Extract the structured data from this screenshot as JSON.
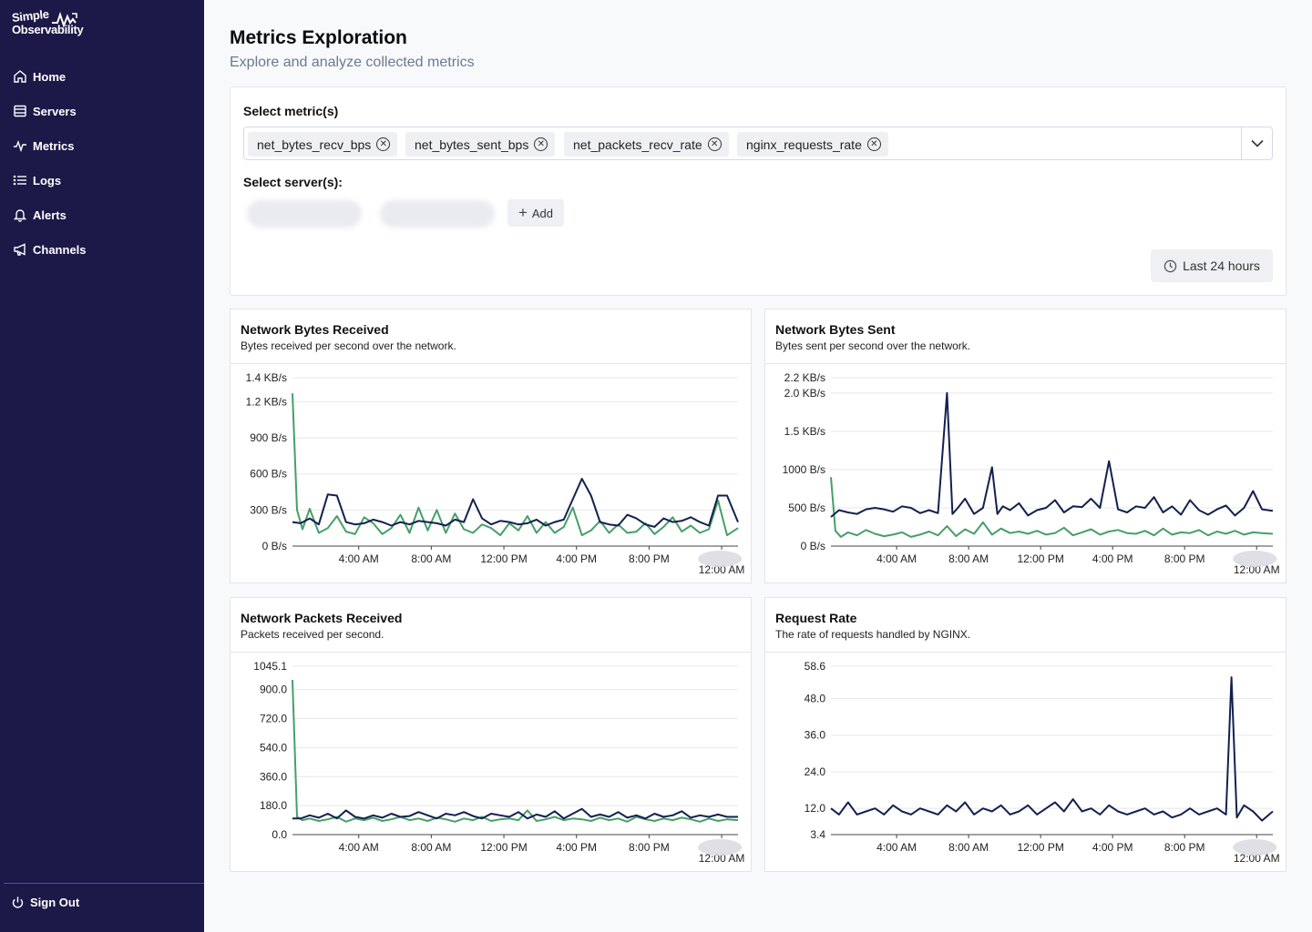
{
  "app": {
    "logo_line1": "Simple",
    "logo_line2": "Observability"
  },
  "sidebar": {
    "items": [
      {
        "label": "Home",
        "icon": "home-icon"
      },
      {
        "label": "Servers",
        "icon": "servers-icon"
      },
      {
        "label": "Metrics",
        "icon": "metrics-icon"
      },
      {
        "label": "Logs",
        "icon": "logs-icon"
      },
      {
        "label": "Alerts",
        "icon": "bell-icon"
      },
      {
        "label": "Channels",
        "icon": "megaphone-icon"
      }
    ],
    "sign_out": "Sign Out"
  },
  "page": {
    "title": "Metrics Exploration",
    "subtitle": "Explore and analyze collected metrics"
  },
  "filters": {
    "metrics_label": "Select metric(s)",
    "metrics": [
      "net_bytes_recv_bps",
      "net_bytes_sent_bps",
      "net_packets_recv_rate",
      "nginx_requests_rate"
    ],
    "servers_label": "Select server(s):",
    "add_label": "Add",
    "time_range": "Last 24 hours"
  },
  "colors": {
    "sidebar_bg": "#1c1848",
    "series_dark": "#14204f",
    "series_green": "#45a066"
  },
  "chart_data": [
    {
      "type": "line",
      "title": "Network Bytes Received",
      "subtitle": "Bytes received per second over the network.",
      "y_tick_labels": [
        "0 B/s",
        "300 B/s",
        "600 B/s",
        "900 B/s",
        "1.2 KB/s",
        "1.4 KB/s"
      ],
      "y_ticks": [
        0,
        300,
        600,
        900,
        1200,
        1400
      ],
      "ylim": [
        0,
        1400
      ],
      "x_labels": [
        "4:00 AM",
        "8:00 AM",
        "12:00 PM",
        "4:00 PM",
        "8:00 PM",
        "12:00 AM"
      ],
      "x_label_hours": [
        4,
        8,
        12,
        16,
        20,
        24
      ],
      "xlim": [
        0.35,
        24.9
      ],
      "series": [
        {
          "name": "server-1",
          "color": "#14204f",
          "x": [
            0.35,
            0.8,
            1.3,
            1.8,
            2.3,
            2.8,
            3.3,
            3.8,
            4.3,
            4.8,
            5.3,
            5.8,
            6.3,
            6.8,
            7.3,
            7.8,
            8.3,
            8.8,
            9.3,
            9.8,
            10.3,
            10.8,
            11.3,
            11.8,
            12.3,
            12.8,
            13.3,
            13.8,
            14.3,
            14.8,
            15.3,
            15.8,
            16.3,
            16.8,
            17.3,
            17.8,
            18.3,
            18.8,
            19.3,
            19.8,
            20.3,
            20.8,
            21.3,
            21.8,
            22.3,
            22.8,
            23.3,
            23.8,
            24.3,
            24.9
          ],
          "values": [
            200,
            190,
            230,
            180,
            430,
            420,
            200,
            180,
            190,
            220,
            200,
            170,
            200,
            180,
            210,
            200,
            190,
            170,
            220,
            200,
            390,
            230,
            180,
            210,
            200,
            180,
            190,
            220,
            170,
            200,
            220,
            390,
            560,
            420,
            200,
            180,
            170,
            260,
            230,
            180,
            160,
            230,
            200,
            210,
            240,
            200,
            170,
            420,
            420,
            200
          ]
        },
        {
          "name": "server-2",
          "color": "#45a066",
          "x": [
            0.35,
            0.6,
            0.9,
            1.3,
            1.8,
            2.3,
            2.8,
            3.3,
            3.8,
            4.3,
            4.8,
            5.3,
            5.8,
            6.3,
            6.8,
            7.3,
            7.8,
            8.3,
            8.8,
            9.3,
            9.8,
            10.3,
            10.8,
            11.3,
            11.8,
            12.3,
            12.8,
            13.3,
            13.8,
            14.3,
            14.8,
            15.3,
            15.8,
            16.3,
            16.8,
            17.3,
            17.8,
            18.3,
            18.8,
            19.3,
            19.8,
            20.3,
            20.8,
            21.3,
            21.8,
            22.3,
            22.8,
            23.3,
            23.8,
            24.3,
            24.9
          ],
          "values": [
            1270,
            300,
            140,
            310,
            110,
            150,
            250,
            120,
            100,
            240,
            190,
            100,
            150,
            260,
            110,
            320,
            130,
            300,
            110,
            270,
            140,
            110,
            180,
            150,
            90,
            190,
            130,
            250,
            110,
            200,
            110,
            160,
            320,
            90,
            130,
            210,
            110,
            180,
            110,
            120,
            190,
            100,
            160,
            240,
            120,
            170,
            110,
            140,
            380,
            90,
            150
          ]
        }
      ]
    },
    {
      "type": "line",
      "title": "Network Bytes Sent",
      "subtitle": "Bytes sent per second over the network.",
      "y_tick_labels": [
        "0 B/s",
        "500 B/s",
        "1000 B/s",
        "1.5 KB/s",
        "2.0 KB/s",
        "2.2 KB/s"
      ],
      "y_ticks": [
        0,
        500,
        1000,
        1500,
        2000,
        2200
      ],
      "ylim": [
        0,
        2200
      ],
      "x_labels": [
        "4:00 AM",
        "8:00 AM",
        "12:00 PM",
        "4:00 PM",
        "8:00 PM",
        "12:00 AM"
      ],
      "x_label_hours": [
        4,
        8,
        12,
        16,
        20,
        24
      ],
      "xlim": [
        0.35,
        24.9
      ],
      "series": [
        {
          "name": "server-1",
          "color": "#14204f",
          "x": [
            0.35,
            0.8,
            1.3,
            1.8,
            2.3,
            2.8,
            3.3,
            3.8,
            4.3,
            4.8,
            5.3,
            5.8,
            6.3,
            6.8,
            7.1,
            7.4,
            7.8,
            8.3,
            8.8,
            9.3,
            9.6,
            9.9,
            10.3,
            10.8,
            11.3,
            11.8,
            12.3,
            12.8,
            13.3,
            13.8,
            14.3,
            14.8,
            15.3,
            15.8,
            16.3,
            16.8,
            17.3,
            17.8,
            18.3,
            18.8,
            19.3,
            19.8,
            20.3,
            20.8,
            21.3,
            21.8,
            22.3,
            22.8,
            23.3,
            23.8,
            24.3,
            24.9
          ],
          "values": [
            380,
            470,
            440,
            420,
            480,
            500,
            480,
            450,
            520,
            500,
            430,
            470,
            430,
            2000,
            420,
            500,
            620,
            420,
            500,
            1030,
            420,
            520,
            470,
            560,
            400,
            470,
            500,
            600,
            440,
            520,
            510,
            620,
            500,
            1110,
            480,
            440,
            520,
            500,
            640,
            440,
            520,
            410,
            600,
            470,
            410,
            480,
            530,
            400,
            500,
            720,
            480,
            460
          ]
        },
        {
          "name": "server-2",
          "color": "#45a066",
          "x": [
            0.35,
            0.6,
            0.9,
            1.3,
            1.8,
            2.3,
            2.8,
            3.3,
            3.8,
            4.3,
            4.8,
            5.3,
            5.8,
            6.3,
            6.8,
            7.3,
            7.8,
            8.3,
            8.8,
            9.3,
            9.8,
            10.3,
            10.8,
            11.3,
            11.8,
            12.3,
            12.8,
            13.3,
            13.8,
            14.3,
            14.8,
            15.3,
            15.8,
            16.3,
            16.8,
            17.3,
            17.8,
            18.3,
            18.8,
            19.3,
            19.8,
            20.3,
            20.8,
            21.3,
            21.8,
            22.3,
            22.8,
            23.3,
            23.8,
            24.3,
            24.9
          ],
          "values": [
            900,
            200,
            120,
            180,
            140,
            210,
            160,
            130,
            150,
            180,
            120,
            150,
            190,
            140,
            260,
            130,
            220,
            160,
            310,
            150,
            230,
            170,
            190,
            160,
            200,
            150,
            170,
            240,
            140,
            180,
            220,
            150,
            190,
            210,
            170,
            160,
            200,
            140,
            230,
            150,
            180,
            170,
            210,
            140,
            190,
            160,
            200,
            150,
            180,
            170,
            160
          ]
        }
      ]
    },
    {
      "type": "line",
      "title": "Network Packets Received",
      "subtitle": "Packets received per second.",
      "y_tick_labels": [
        "0.0",
        "180.0",
        "360.0",
        "540.0",
        "720.0",
        "900.0",
        "1045.1"
      ],
      "y_ticks": [
        0,
        180,
        360,
        540,
        720,
        900,
        1045.1
      ],
      "ylim": [
        0,
        1045.1
      ],
      "x_labels": [
        "4:00 AM",
        "8:00 AM",
        "12:00 PM",
        "4:00 PM",
        "8:00 PM",
        "12:00 AM"
      ],
      "x_label_hours": [
        4,
        8,
        12,
        16,
        20,
        24
      ],
      "xlim": [
        0.35,
        24.9
      ],
      "series": [
        {
          "name": "server-1",
          "color": "#14204f",
          "x": [
            0.35,
            0.8,
            1.3,
            1.8,
            2.3,
            2.8,
            3.3,
            3.8,
            4.3,
            4.8,
            5.3,
            5.8,
            6.3,
            6.8,
            7.3,
            7.8,
            8.3,
            8.8,
            9.3,
            9.8,
            10.3,
            10.8,
            11.3,
            11.8,
            12.3,
            12.8,
            13.3,
            13.8,
            14.3,
            14.8,
            15.3,
            15.8,
            16.3,
            16.8,
            17.3,
            17.8,
            18.3,
            18.8,
            19.3,
            19.8,
            20.3,
            20.8,
            21.3,
            21.8,
            22.3,
            22.8,
            23.3,
            23.8,
            24.3,
            24.9
          ],
          "values": [
            100,
            100,
            120,
            105,
            130,
            100,
            150,
            110,
            100,
            120,
            105,
            130,
            110,
            115,
            140,
            120,
            100,
            130,
            120,
            140,
            115,
            100,
            130,
            120,
            110,
            140,
            100,
            125,
            110,
            145,
            100,
            130,
            160,
            110,
            125,
            110,
            140,
            105,
            120,
            100,
            130,
            110,
            120,
            145,
            105,
            120,
            110,
            125,
            110,
            110
          ]
        },
        {
          "name": "server-2",
          "color": "#45a066",
          "x": [
            0.35,
            0.6,
            0.9,
            1.3,
            1.8,
            2.3,
            2.8,
            3.3,
            3.8,
            4.3,
            4.8,
            5.3,
            5.8,
            6.3,
            6.8,
            7.3,
            7.8,
            8.3,
            8.8,
            9.3,
            9.8,
            10.3,
            10.8,
            11.3,
            11.8,
            12.3,
            12.8,
            13.3,
            13.8,
            14.3,
            14.8,
            15.3,
            15.8,
            16.3,
            16.8,
            17.3,
            17.8,
            18.3,
            18.8,
            19.3,
            19.8,
            20.3,
            20.8,
            21.3,
            21.8,
            22.3,
            22.8,
            23.3,
            23.8,
            24.3,
            24.9
          ],
          "values": [
            960,
            110,
            90,
            100,
            85,
            95,
            110,
            80,
            100,
            90,
            105,
            85,
            95,
            110,
            90,
            100,
            85,
            105,
            95,
            80,
            100,
            90,
            110,
            85,
            95,
            100,
            90,
            150,
            85,
            95,
            110,
            90,
            100,
            95,
            85,
            105,
            90,
            100,
            80,
            110,
            95,
            85,
            100,
            90,
            105,
            95,
            80,
            100,
            85,
            95,
            90
          ]
        }
      ]
    },
    {
      "type": "line",
      "title": "Request Rate",
      "subtitle": "The rate of requests handled by NGINX.",
      "y_tick_labels": [
        "3.4",
        "12.0",
        "24.0",
        "36.0",
        "48.0",
        "58.6"
      ],
      "y_ticks": [
        3.4,
        12,
        24,
        36,
        48,
        58.6
      ],
      "ylim": [
        3.4,
        58.6
      ],
      "x_labels": [
        "4:00 AM",
        "8:00 AM",
        "12:00 PM",
        "4:00 PM",
        "8:00 PM",
        "12:00 AM"
      ],
      "x_label_hours": [
        4,
        8,
        12,
        16,
        20,
        24
      ],
      "xlim": [
        0.35,
        24.9
      ],
      "series": [
        {
          "name": "server-1",
          "color": "#14204f",
          "x": [
            0.35,
            0.8,
            1.3,
            1.8,
            2.3,
            2.8,
            3.3,
            3.8,
            4.3,
            4.8,
            5.3,
            5.8,
            6.3,
            6.8,
            7.3,
            7.8,
            8.3,
            8.8,
            9.3,
            9.8,
            10.3,
            10.8,
            11.3,
            11.8,
            12.3,
            12.8,
            13.3,
            13.8,
            14.3,
            14.8,
            15.3,
            15.8,
            16.3,
            16.8,
            17.3,
            17.8,
            18.3,
            18.8,
            19.3,
            19.8,
            20.3,
            20.8,
            21.3,
            21.8,
            22.3,
            22.6,
            22.9,
            23.3,
            23.8,
            24.3,
            24.9
          ],
          "values": [
            12,
            10,
            14,
            10,
            11,
            12,
            10,
            13,
            11,
            10,
            12,
            11,
            10,
            13,
            11,
            14,
            10,
            12,
            11,
            13,
            10,
            11,
            13,
            10,
            12,
            14,
            11,
            15,
            11,
            12,
            10,
            13,
            11,
            10,
            11,
            12,
            10,
            11,
            9,
            10,
            12,
            10,
            11,
            12,
            10,
            55,
            9,
            13,
            11,
            8,
            11
          ]
        }
      ]
    }
  ]
}
